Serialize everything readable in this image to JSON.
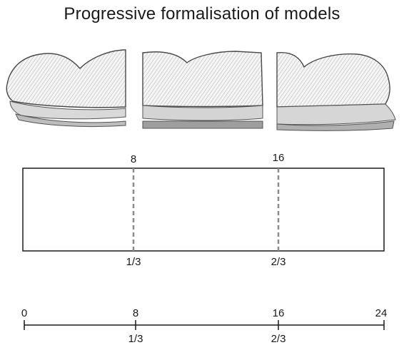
{
  "title": "Progressive formalisation of models",
  "rectangle": {
    "top_labels": [
      "8",
      "16"
    ],
    "bottom_labels": [
      "1/3",
      "2/3"
    ]
  },
  "number_line": {
    "top_labels": [
      "0",
      "8",
      "16",
      "24"
    ],
    "bottom_labels": [
      "1/3",
      "2/3"
    ]
  },
  "colors": {
    "ink": "#1a1a1a",
    "dashed": "#8c8c8c"
  }
}
